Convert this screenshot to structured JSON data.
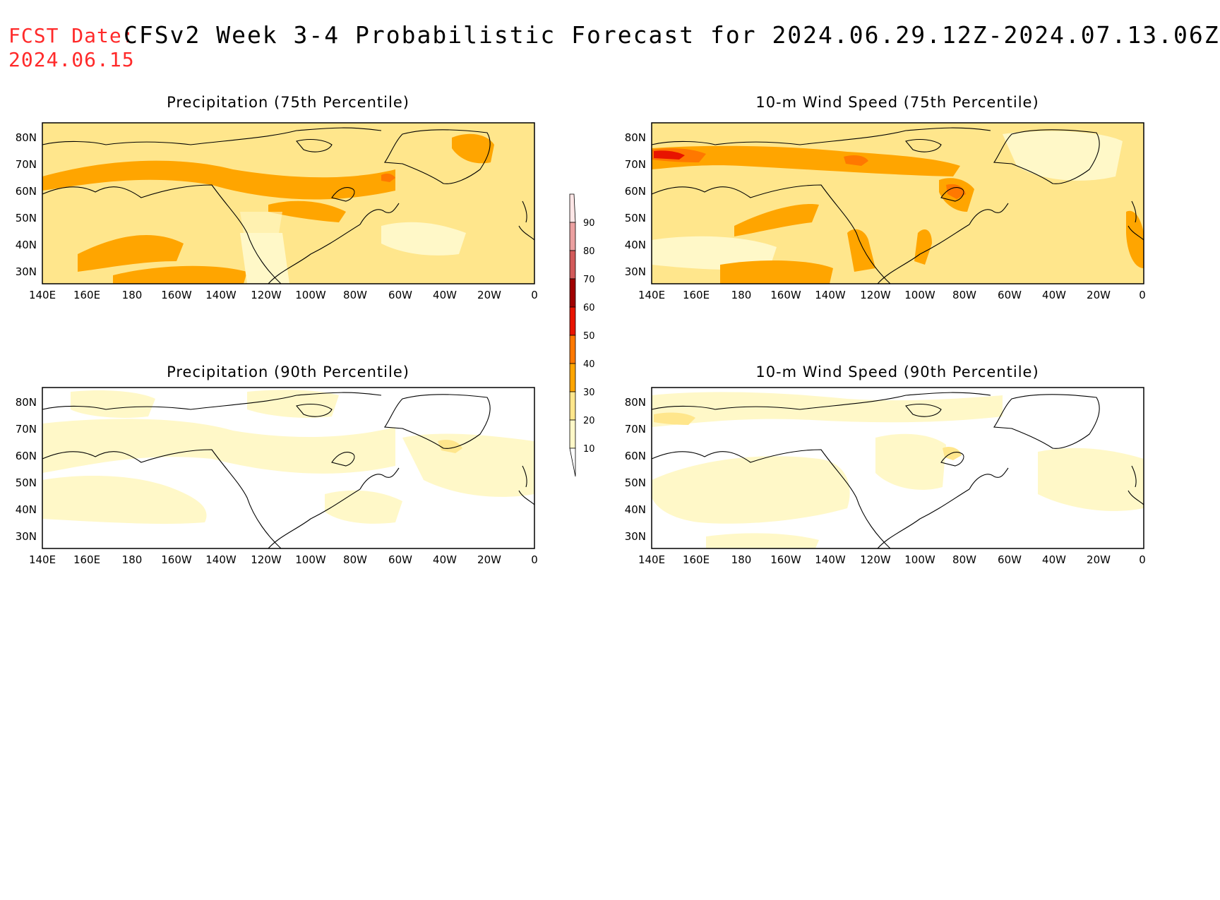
{
  "header": {
    "fcst_label": "FCST Date:",
    "fcst_date": "2024.06.15",
    "title": "CFSv2 Week 3-4 Probabilistic Forecast for 2024.06.29.12Z-2024.07.13.06Z"
  },
  "axes": {
    "lon_ticks": [
      "140E",
      "160E",
      "180",
      "160W",
      "140W",
      "120W",
      "100W",
      "80W",
      "60W",
      "40W",
      "20W",
      "0"
    ],
    "lat_ticks": [
      "80N",
      "70N",
      "60N",
      "50N",
      "40N",
      "30N"
    ]
  },
  "panels": [
    {
      "title": "Precipitation (75th Percentile)",
      "base_level": 20
    },
    {
      "title": "10-m Wind Speed (75th Percentile)",
      "base_level": 20
    },
    {
      "title": "Precipitation (90th Percentile)",
      "base_level": 10
    },
    {
      "title": "10-m Wind Speed (90th Percentile)",
      "base_level": 10
    }
  ],
  "colorbar": {
    "levels": [
      "10",
      "20",
      "30",
      "40",
      "50",
      "60",
      "70",
      "80",
      "90"
    ],
    "colors": [
      "#fff8c8",
      "#ffe68c",
      "#ffa500",
      "#ff7800",
      "#e81400",
      "#a00000",
      "#d25a5a",
      "#eba0a0",
      "#ffe6e6"
    ]
  },
  "colors": {
    "c10": "#fff8c8",
    "c20": "#ffe68c",
    "c30": "#ffa500",
    "c40": "#ff7800",
    "c50": "#e81400"
  }
}
